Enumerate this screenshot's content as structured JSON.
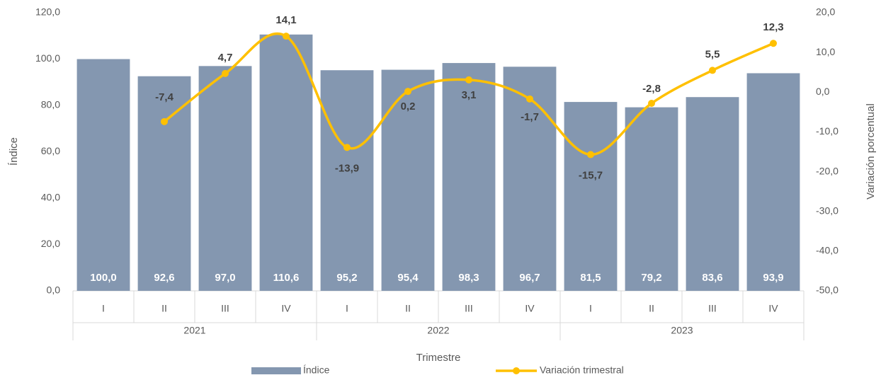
{
  "chart_data": {
    "type": "bar",
    "categories": [
      "I",
      "II",
      "III",
      "IV",
      "I",
      "II",
      "III",
      "IV",
      "I",
      "II",
      "III",
      "IV"
    ],
    "category_groups": [
      "2021",
      "2022",
      "2023"
    ],
    "x_label": "Trimestre",
    "y_label": "Índice",
    "y2_label": "Variación porcentual",
    "series": [
      {
        "name": "Índice",
        "type": "bar",
        "color": "#8497b0",
        "values": [
          100,
          92.6,
          97,
          110.6,
          95.2,
          95.4,
          98.3,
          96.7,
          81.5,
          79.2,
          83.6,
          93.9
        ],
        "value_labels": [
          "100,0",
          "92,6",
          "97,0",
          "110,6",
          "95,2",
          "95,4",
          "98,3",
          "96,7",
          "81,5",
          "79,2",
          "83,6",
          "93,9"
        ]
      },
      {
        "name": "Variación trimestral",
        "type": "line",
        "axis": "y2",
        "color": "#ffc000",
        "values": [
          null,
          -7.4,
          4.7,
          14.1,
          -13.9,
          0.2,
          3.1,
          -1.7,
          -15.7,
          -2.8,
          5.5,
          12.3
        ],
        "value_labels": [
          null,
          "-7,4",
          "4,7",
          "14,1",
          "-13,9",
          "0,2",
          "3,1",
          "-1,7",
          "-15,7",
          "-2,8",
          "5,5",
          "12,3"
        ]
      }
    ],
    "ylim": [
      0,
      120
    ],
    "yticks": [
      {
        "value": 0,
        "label": "0,0"
      },
      {
        "value": 20,
        "label": "20,0"
      },
      {
        "value": 40,
        "label": "40,0"
      },
      {
        "value": 60,
        "label": "60,0"
      },
      {
        "value": 80,
        "label": "80,0"
      },
      {
        "value": 100,
        "label": "100,0"
      },
      {
        "value": 120,
        "label": "120,0"
      }
    ],
    "y2lim": [
      -50,
      20
    ],
    "y2ticks": [
      {
        "value": -50,
        "label": "-50,0"
      },
      {
        "value": -40,
        "label": "-40,0"
      },
      {
        "value": -30,
        "label": "-30,0"
      },
      {
        "value": -20,
        "label": "-20,0"
      },
      {
        "value": -10,
        "label": "-10,0"
      },
      {
        "value": 0,
        "label": "0,0"
      },
      {
        "value": 10,
        "label": "10,0"
      },
      {
        "value": 20,
        "label": "20,0"
      }
    ],
    "legend": "bottom"
  }
}
